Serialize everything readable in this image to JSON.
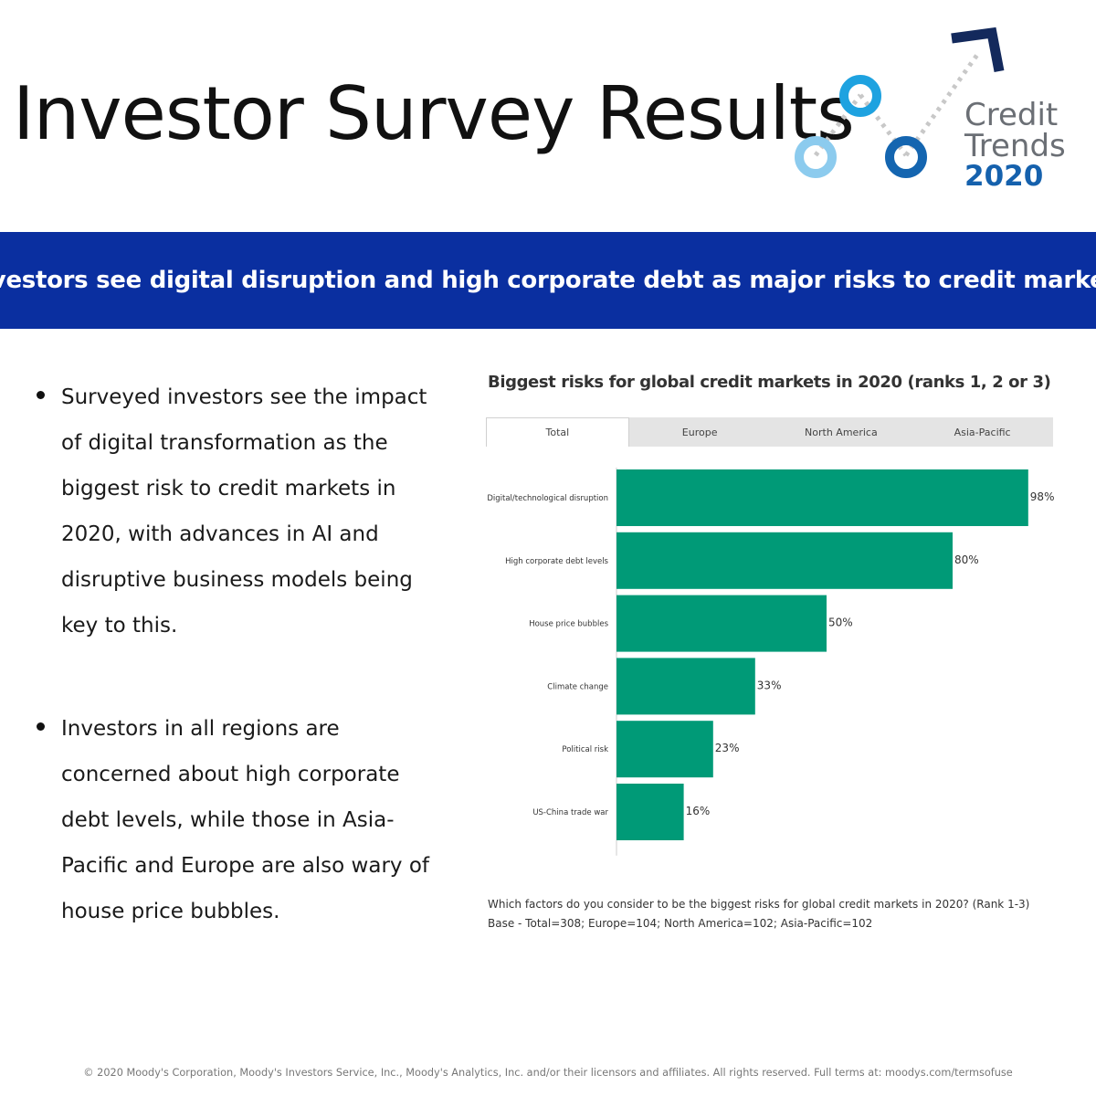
{
  "header": {
    "title": "Investor Survey Results",
    "logo": {
      "line1": "Credit",
      "line2": "Trends",
      "year": "2020"
    }
  },
  "banner": {
    "text": "Investors see digital disruption and high corporate debt as major risks to credit markets"
  },
  "bullets": [
    "Surveyed investors see the impact of digital transformation as the biggest risk to credit markets in 2020, with advances in AI and disruptive business models being key to this.",
    "Investors in all regions are concerned about high corporate debt levels, while those in Asia-Pacific and Europe are also wary of house price bubbles."
  ],
  "tabs": [
    {
      "label": "Total",
      "active": true
    },
    {
      "label": "Europe",
      "active": false
    },
    {
      "label": "North America",
      "active": false
    },
    {
      "label": "Asia-Pacific",
      "active": false
    }
  ],
  "chart_data": {
    "type": "bar",
    "orientation": "horizontal",
    "title": "Biggest risks for global credit markets in 2020 (ranks 1, 2 or 3)",
    "categories": [
      "Digital/technological disruption",
      "High corporate debt levels",
      "House price bubbles",
      "Climate change",
      "Political risk",
      "US-China trade war"
    ],
    "values": [
      98,
      80,
      50,
      33,
      23,
      16
    ],
    "value_labels": [
      "98%",
      "80%",
      "50%",
      "33%",
      "23%",
      "16%"
    ],
    "xlim": [
      0,
      100
    ],
    "bar_color": "#009a77",
    "grid": false
  },
  "note": {
    "line1": "Which factors do you consider to be the biggest risks for global credit markets in 2020? (Rank 1-3)",
    "line2": "Base - Total=308; Europe=104; North America=102; Asia-Pacific=102"
  },
  "footer": "© 2020 Moody's Corporation, Moody's Investors Service, Inc., Moody's Analytics, Inc. and/or their licensors and affiliates. All rights reserved. Full terms at: moodys.com/termsofuse"
}
